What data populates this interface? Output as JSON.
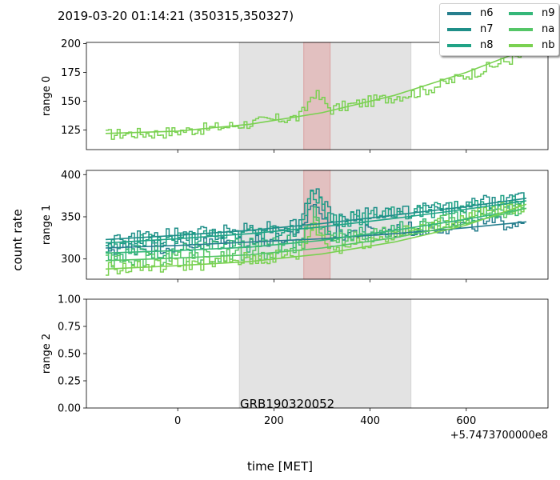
{
  "figure": {
    "title": "2019-03-20 01:14:21 (350315,350327)",
    "ylabel": "count rate",
    "xlabel": "time [MET]",
    "x_offset_label": "+5.7473700000e8",
    "annotation": "GRB190320052"
  },
  "legend": {
    "entries": [
      {
        "name": "n6",
        "color": "#277f8e"
      },
      {
        "name": "n7",
        "color": "#1f8f89"
      },
      {
        "name": "n8",
        "color": "#20a386"
      },
      {
        "name": "n9",
        "color": "#35b779"
      },
      {
        "name": "na",
        "color": "#55c667"
      },
      {
        "name": "nb",
        "color": "#7ad151"
      }
    ]
  },
  "chart_data": [
    {
      "type": "line",
      "panel": "range 0",
      "ylabel": "range 0",
      "xlim": [
        -190,
        770
      ],
      "ylim": [
        108,
        201
      ],
      "yticks": [
        125,
        150,
        175,
        200
      ],
      "xticks": [
        0,
        200,
        400,
        600
      ],
      "background_interval": [
        128,
        485
      ],
      "source_interval": [
        262,
        317
      ],
      "series": [
        {
          "name": "nb",
          "color": "#7ad151",
          "x": [
            -150,
            -100,
            -50,
            0,
            50,
            100,
            150,
            200,
            250,
            262,
            280,
            300,
            317,
            350,
            400,
            450,
            500,
            550,
            600,
            650,
            700,
            725
          ],
          "y": [
            121,
            122,
            122,
            124,
            126,
            128,
            131,
            134,
            136,
            142,
            158,
            150,
            143,
            146,
            150,
            154,
            158,
            165,
            173,
            180,
            188,
            190
          ]
        }
      ],
      "fit": [
        {
          "name": "nb",
          "color": "#7ad151",
          "x": [
            -150,
            0,
            150,
            300,
            450,
            600,
            725
          ],
          "y": [
            122,
            124,
            130,
            140,
            155,
            175,
            195
          ]
        }
      ]
    },
    {
      "type": "line",
      "panel": "range 1",
      "ylabel": "range 1",
      "xlim": [
        -190,
        770
      ],
      "ylim": [
        276,
        405
      ],
      "yticks": [
        300,
        350,
        400
      ],
      "xticks": [
        0,
        200,
        400,
        600
      ],
      "background_interval": [
        128,
        485
      ],
      "source_interval": [
        262,
        317
      ],
      "series": [
        {
          "name": "n6",
          "color": "#277f8e",
          "x": [
            -150,
            -50,
            50,
            150,
            250,
            262,
            280,
            317,
            400,
            500,
            600,
            725
          ],
          "y": [
            312,
            315,
            318,
            322,
            325,
            345,
            370,
            330,
            332,
            336,
            340,
            345
          ]
        },
        {
          "name": "n7",
          "color": "#1f8f89",
          "x": [
            -150,
            -50,
            50,
            150,
            250,
            262,
            280,
            317,
            400,
            500,
            600,
            725
          ],
          "y": [
            322,
            326,
            330,
            336,
            340,
            360,
            385,
            348,
            352,
            358,
            364,
            372
          ]
        },
        {
          "name": "n8",
          "color": "#20a386",
          "x": [
            -150,
            -50,
            50,
            150,
            250,
            262,
            280,
            317,
            400,
            500,
            600,
            725
          ],
          "y": [
            318,
            322,
            326,
            331,
            336,
            356,
            380,
            344,
            350,
            356,
            363,
            370
          ]
        },
        {
          "name": "n9",
          "color": "#35b779",
          "x": [
            -150,
            -50,
            50,
            150,
            250,
            262,
            280,
            317,
            400,
            500,
            600,
            725
          ],
          "y": [
            306,
            309,
            312,
            316,
            320,
            335,
            355,
            326,
            332,
            340,
            350,
            360
          ]
        },
        {
          "name": "na",
          "color": "#55c667",
          "x": [
            -150,
            -50,
            50,
            150,
            250,
            262,
            280,
            317,
            400,
            500,
            600,
            725
          ],
          "y": [
            298,
            300,
            303,
            307,
            312,
            325,
            345,
            320,
            328,
            338,
            350,
            362
          ]
        },
        {
          "name": "nb",
          "color": "#7ad151",
          "x": [
            -150,
            -50,
            50,
            150,
            250,
            262,
            280,
            317,
            400,
            500,
            600,
            725
          ],
          "y": [
            288,
            291,
            295,
            299,
            305,
            318,
            340,
            312,
            322,
            334,
            348,
            366
          ]
        }
      ],
      "fit": [
        {
          "name": "n6",
          "color": "#277f8e",
          "x": [
            -150,
            0,
            150,
            300,
            450,
            600,
            725
          ],
          "y": [
            313,
            316,
            320,
            324,
            330,
            337,
            344
          ]
        },
        {
          "name": "n7",
          "color": "#1f8f89",
          "x": [
            -150,
            0,
            150,
            300,
            450,
            600,
            725
          ],
          "y": [
            323,
            328,
            334,
            342,
            352,
            362,
            372
          ]
        },
        {
          "name": "n8",
          "color": "#20a386",
          "x": [
            -150,
            0,
            150,
            300,
            450,
            600,
            725
          ],
          "y": [
            319,
            324,
            330,
            338,
            348,
            359,
            369
          ]
        },
        {
          "name": "n9",
          "color": "#35b779",
          "x": [
            -150,
            0,
            150,
            300,
            450,
            600,
            725
          ],
          "y": [
            307,
            310,
            314,
            322,
            334,
            347,
            360
          ]
        },
        {
          "name": "na",
          "color": "#55c667",
          "x": [
            -150,
            0,
            150,
            300,
            450,
            600,
            725
          ],
          "y": [
            298,
            301,
            305,
            313,
            325,
            342,
            360
          ]
        },
        {
          "name": "nb",
          "color": "#7ad151",
          "x": [
            -150,
            0,
            150,
            300,
            450,
            600,
            725
          ],
          "y": [
            288,
            292,
            297,
            306,
            320,
            340,
            365
          ]
        }
      ]
    },
    {
      "type": "line",
      "panel": "range 2",
      "ylabel": "range 2",
      "xlim": [
        -190,
        770
      ],
      "ylim": [
        0,
        1
      ],
      "yticks": [
        0.0,
        0.25,
        0.5,
        0.75,
        1.0
      ],
      "ytick_labels": [
        "0.00",
        "0.25",
        "0.50",
        "0.75",
        "1.00"
      ],
      "xticks": [
        0,
        200,
        400,
        600
      ],
      "xtick_labels": [
        "0",
        "200",
        "400",
        "600"
      ],
      "background_interval": [
        128,
        485
      ],
      "series": []
    }
  ]
}
